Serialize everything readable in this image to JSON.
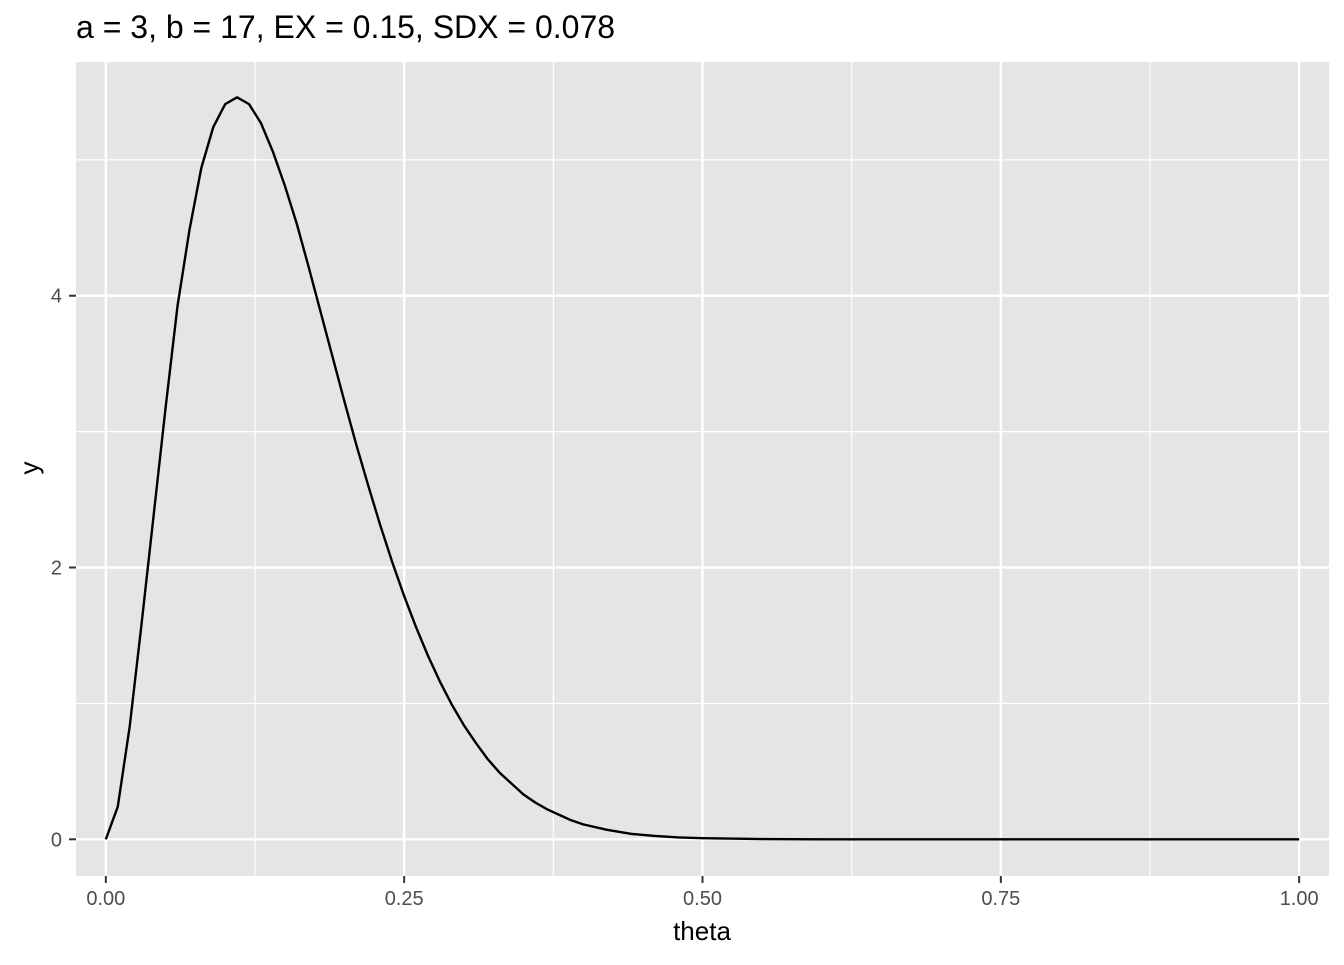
{
  "chart_data": {
    "type": "line",
    "title": "a = 3, b = 17, EX = 0.15, SDX = 0.078",
    "xlabel": "theta",
    "ylabel": "y",
    "xlim": [
      -0.025,
      1.025
    ],
    "ylim": [
      -0.27,
      5.72
    ],
    "x_ticks": [
      0,
      0.25,
      0.5,
      0.75,
      1
    ],
    "x_tick_labels": [
      "0.00",
      "0.25",
      "0.50",
      "0.75",
      "1.00"
    ],
    "x_minor_ticks": [
      0.125,
      0.375,
      0.625,
      0.875
    ],
    "y_ticks": [
      0,
      2,
      4
    ],
    "y_tick_labels": [
      "0",
      "2",
      "4"
    ],
    "y_minor_ticks": [
      1,
      3,
      5
    ],
    "grid": true,
    "legend": "none",
    "series": [
      {
        "x": [
          0,
          0.01,
          0.02,
          0.03,
          0.04,
          0.05,
          0.06,
          0.07,
          0.08,
          0.09,
          0.1,
          0.11,
          0.12,
          0.13,
          0.14,
          0.15,
          0.16,
          0.17,
          0.18,
          0.19,
          0.2,
          0.21,
          0.22,
          0.23,
          0.24,
          0.25,
          0.26,
          0.27,
          0.28,
          0.29,
          0.3,
          0.31,
          0.32,
          0.33,
          0.34,
          0.35,
          0.36,
          0.37,
          0.38,
          0.39,
          0.4,
          0.42,
          0.44,
          0.46,
          0.48,
          0.5,
          0.55,
          0.6,
          0.65,
          0.7,
          0.75,
          0.8,
          0.85,
          0.9,
          0.95,
          1
        ],
        "y": [
          0,
          0.24,
          0.83,
          1.59,
          2.38,
          3.17,
          3.92,
          4.48,
          4.94,
          5.24,
          5.41,
          5.46,
          5.41,
          5.27,
          5.06,
          4.81,
          4.53,
          4.21,
          3.88,
          3.55,
          3.22,
          2.9,
          2.6,
          2.31,
          2.04,
          1.79,
          1.56,
          1.35,
          1.16,
          0.99,
          0.84,
          0.71,
          0.59,
          0.49,
          0.41,
          0.33,
          0.27,
          0.22,
          0.18,
          0.14,
          0.11,
          0.07,
          0.04,
          0.025,
          0.014,
          0.008,
          0.002,
          0,
          0,
          0,
          0,
          0,
          0,
          0,
          0,
          0
        ]
      }
    ]
  },
  "colors": {
    "panel_background": "#e5e5e5",
    "grid": "#ffffff",
    "line": "#000000",
    "tick": "#333333"
  }
}
